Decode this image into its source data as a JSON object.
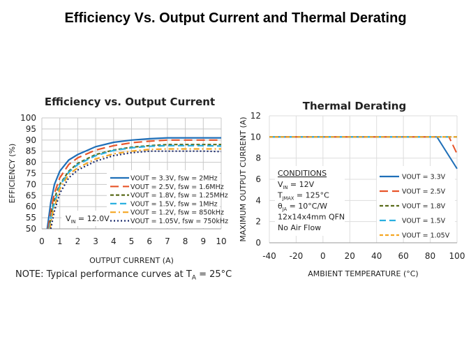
{
  "page_title": "Efficiency Vs. Output Current and Thermal Derating",
  "note": {
    "prefix": "NOTE: Typical performance curves at  T",
    "sub": "A",
    "suffix": " = 25°C"
  },
  "chart_data": [
    {
      "type": "line",
      "title": "Efficiency vs. Output Current",
      "xlabel": "OUTPUT CURRENT (A)",
      "ylabel": "EFFICIENCY (%)",
      "xlim": [
        0,
        10
      ],
      "ylim": [
        50,
        100
      ],
      "xticks": [
        0,
        1,
        2,
        3,
        4,
        5,
        6,
        7,
        8,
        9,
        10
      ],
      "yticks": [
        50,
        55,
        60,
        65,
        70,
        75,
        80,
        85,
        90,
        95,
        100
      ],
      "grid": true,
      "annotation": {
        "main": "V",
        "sub": "IN",
        "rest": " = 12.0V"
      },
      "legend_position": "bottom-right",
      "series": [
        {
          "name": "VOUT = 3.3V, fsw = 2MHz",
          "color": "#1f6fb8",
          "dash": "solid",
          "points": [
            [
              0.3,
              50
            ],
            [
              0.5,
              62
            ],
            [
              0.7,
              70
            ],
            [
              1,
              76
            ],
            [
              1.5,
              81
            ],
            [
              2,
              83.5
            ],
            [
              3,
              87
            ],
            [
              4,
              89
            ],
            [
              5,
              90
            ],
            [
              6,
              90.6
            ],
            [
              7,
              91
            ],
            [
              8,
              91
            ],
            [
              9,
              91
            ],
            [
              10,
              91
            ]
          ]
        },
        {
          "name": "VOUT = 2.5V, fsw = 1.6MHz",
          "color": "#e8552a",
          "dash": "12 6",
          "points": [
            [
              0.35,
              50
            ],
            [
              0.5,
              58
            ],
            [
              0.7,
              66
            ],
            [
              1,
              73
            ],
            [
              1.5,
              79
            ],
            [
              2,
              82
            ],
            [
              3,
              85.5
            ],
            [
              4,
              87.5
            ],
            [
              5,
              88.8
            ],
            [
              6,
              89.5
            ],
            [
              7,
              90
            ],
            [
              8,
              90
            ],
            [
              9,
              90
            ],
            [
              10,
              90
            ]
          ]
        },
        {
          "name": "VOUT = 1.8V, fsw = 1.25MHz",
          "color": "#5a6b1a",
          "dash": "5 3",
          "points": [
            [
              0.4,
              50
            ],
            [
              0.6,
              60
            ],
            [
              0.8,
              66
            ],
            [
              1,
              70
            ],
            [
              1.5,
              76
            ],
            [
              2,
              79.5
            ],
            [
              3,
              83.5
            ],
            [
              4,
              85.5
            ],
            [
              5,
              86.8
            ],
            [
              6,
              87.5
            ],
            [
              7,
              88
            ],
            [
              8,
              88
            ],
            [
              9,
              88
            ],
            [
              10,
              88
            ]
          ]
        },
        {
          "name": "VOUT = 1.5V, fsw = 1MHz",
          "color": "#2ab0e0",
          "dash": "9 5",
          "points": [
            [
              0.4,
              50
            ],
            [
              0.6,
              59
            ],
            [
              1,
              69.5
            ],
            [
              1.5,
              75.5
            ],
            [
              2,
              79
            ],
            [
              3,
              83
            ],
            [
              4,
              85.3
            ],
            [
              5,
              86.5
            ],
            [
              6,
              87.2
            ],
            [
              7,
              87.5
            ],
            [
              8,
              87.5
            ],
            [
              9,
              87.5
            ],
            [
              10,
              87.3
            ]
          ]
        },
        {
          "name": "VOUT = 1.2V, fsw = 850kHz",
          "color": "#f5a623",
          "dash": "8 4 2 4",
          "points": [
            [
              0.45,
              50
            ],
            [
              0.6,
              57
            ],
            [
              1,
              68
            ],
            [
              1.5,
              74.5
            ],
            [
              2,
              77.5
            ],
            [
              3,
              81.5
            ],
            [
              4,
              83.8
            ],
            [
              5,
              85
            ],
            [
              6,
              85.8
            ],
            [
              7,
              86
            ],
            [
              8,
              86
            ],
            [
              9,
              86
            ],
            [
              10,
              86
            ]
          ]
        },
        {
          "name": "VOUT = 1.05V, fsw = 750kHz",
          "color": "#1a2a6c",
          "dash": "2 3",
          "points": [
            [
              0.5,
              50
            ],
            [
              0.7,
              58
            ],
            [
              1,
              66
            ],
            [
              1.5,
              73
            ],
            [
              2,
              76.5
            ],
            [
              3,
              80.5
            ],
            [
              4,
              83
            ],
            [
              5,
              84.3
            ],
            [
              6,
              85
            ],
            [
              7,
              85
            ],
            [
              8,
              85
            ],
            [
              9,
              85
            ],
            [
              10,
              84.8
            ]
          ]
        }
      ]
    },
    {
      "type": "line",
      "title": "Thermal Derating",
      "xlabel": "AMBIENT TEMPERATURE (°C)",
      "ylabel": "MAXIMUM OUTPUT CURRENT (A)",
      "xlim": [
        -40,
        100
      ],
      "ylim": [
        0,
        12
      ],
      "xticks": [
        -40,
        -20,
        0,
        20,
        40,
        60,
        80,
        100
      ],
      "yticks": [
        0,
        2,
        4,
        6,
        8,
        10,
        12
      ],
      "grid": true,
      "legend_position": "bottom-right",
      "conditions": {
        "heading": "CONDITIONS",
        "lines": [
          {
            "main": "V",
            "sub": "IN",
            "rest": " = 12V"
          },
          {
            "main": "T",
            "sub": "JMAX",
            "rest": " = 125°C"
          },
          {
            "main": "θ",
            "sub": "JA",
            "rest": " = 10°C/W"
          },
          {
            "main": "12x14x4mm QFN",
            "sub": "",
            "rest": ""
          },
          {
            "main": "No Air Flow",
            "sub": "",
            "rest": ""
          }
        ]
      },
      "series": [
        {
          "name": "VOUT = 3.3V",
          "color": "#1f6fb8",
          "dash": "solid",
          "points": [
            [
              -40,
              10
            ],
            [
              85,
              10
            ],
            [
              100,
              7
            ]
          ]
        },
        {
          "name": "VOUT = 2.5V",
          "color": "#e8552a",
          "dash": "12 6",
          "points": [
            [
              -40,
              10
            ],
            [
              94,
              10
            ],
            [
              100,
              8.4
            ]
          ]
        },
        {
          "name": "VOUT = 1.8V",
          "color": "#5a6b1a",
          "dash": "5 3",
          "points": [
            [
              -40,
              10
            ],
            [
              100,
              10
            ]
          ]
        },
        {
          "name": "VOUT = 1.5V",
          "color": "#2ab0e0",
          "dash": "9 5",
          "points": [
            [
              -40,
              10
            ],
            [
              100,
              10
            ]
          ]
        },
        {
          "name": "VOUT = 1.05V",
          "color": "#f5a623",
          "dash": "5 3",
          "points": [
            [
              -40,
              10
            ],
            [
              100,
              10
            ]
          ]
        }
      ]
    }
  ]
}
